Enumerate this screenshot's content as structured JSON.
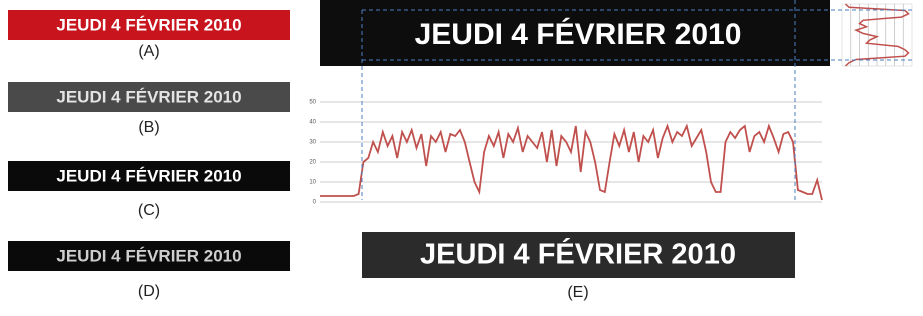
{
  "panels": [
    {
      "text": "JEUDI 4 FÉVRIER 2010",
      "label": "(A)"
    },
    {
      "text": "JEUDI 4 FÉVRIER 2010",
      "label": "(B)"
    },
    {
      "text": "JEUDI 4 FÉVRIER 2010",
      "label": "(C)"
    },
    {
      "text": "JEUDI 4 FÉVRIER 2010",
      "label": "(D)"
    }
  ],
  "panel_e": {
    "label": "(E)",
    "top_text": "JEUDI 4 FÉVRIER 2010",
    "bottom_text": "JEUDI 4 FÉVRIER 2010"
  },
  "chart_data": [
    {
      "type": "line",
      "color": "#c0504d",
      "ylim": [
        0,
        50
      ],
      "yticks": [
        0,
        10,
        20,
        30,
        40,
        50
      ],
      "grid": true,
      "values": [
        3,
        3,
        3,
        3,
        3,
        3,
        3,
        3,
        4,
        20,
        22,
        30,
        25,
        35,
        28,
        33,
        22,
        35,
        30,
        36,
        27,
        34,
        18,
        33,
        30,
        35,
        25,
        34,
        33,
        36,
        30,
        20,
        10,
        5,
        25,
        33,
        28,
        35,
        22,
        34,
        30,
        37,
        25,
        33,
        30,
        27,
        35,
        20,
        36,
        18,
        33,
        30,
        25,
        38,
        15,
        35,
        30,
        20,
        6,
        5,
        20,
        34,
        28,
        36,
        25,
        35,
        20,
        33,
        30,
        36,
        22,
        32,
        38,
        30,
        35,
        33,
        38,
        28,
        32,
        36,
        25,
        10,
        5,
        5,
        30,
        35,
        32,
        36,
        38,
        25,
        33,
        35,
        30,
        38,
        32,
        25,
        34,
        35,
        30,
        6,
        5,
        4,
        4,
        11,
        1
      ]
    },
    {
      "type": "profile",
      "color": "#c0504d",
      "xlim": [
        0,
        1
      ],
      "values": [
        0.05,
        0.1,
        0.9,
        0.95,
        0.85,
        0.3,
        0.25,
        0.35,
        0.2,
        0.3,
        0.5,
        0.4,
        0.35,
        0.8,
        0.9,
        0.95,
        0.9,
        0.2,
        0.1,
        0.05
      ]
    }
  ]
}
